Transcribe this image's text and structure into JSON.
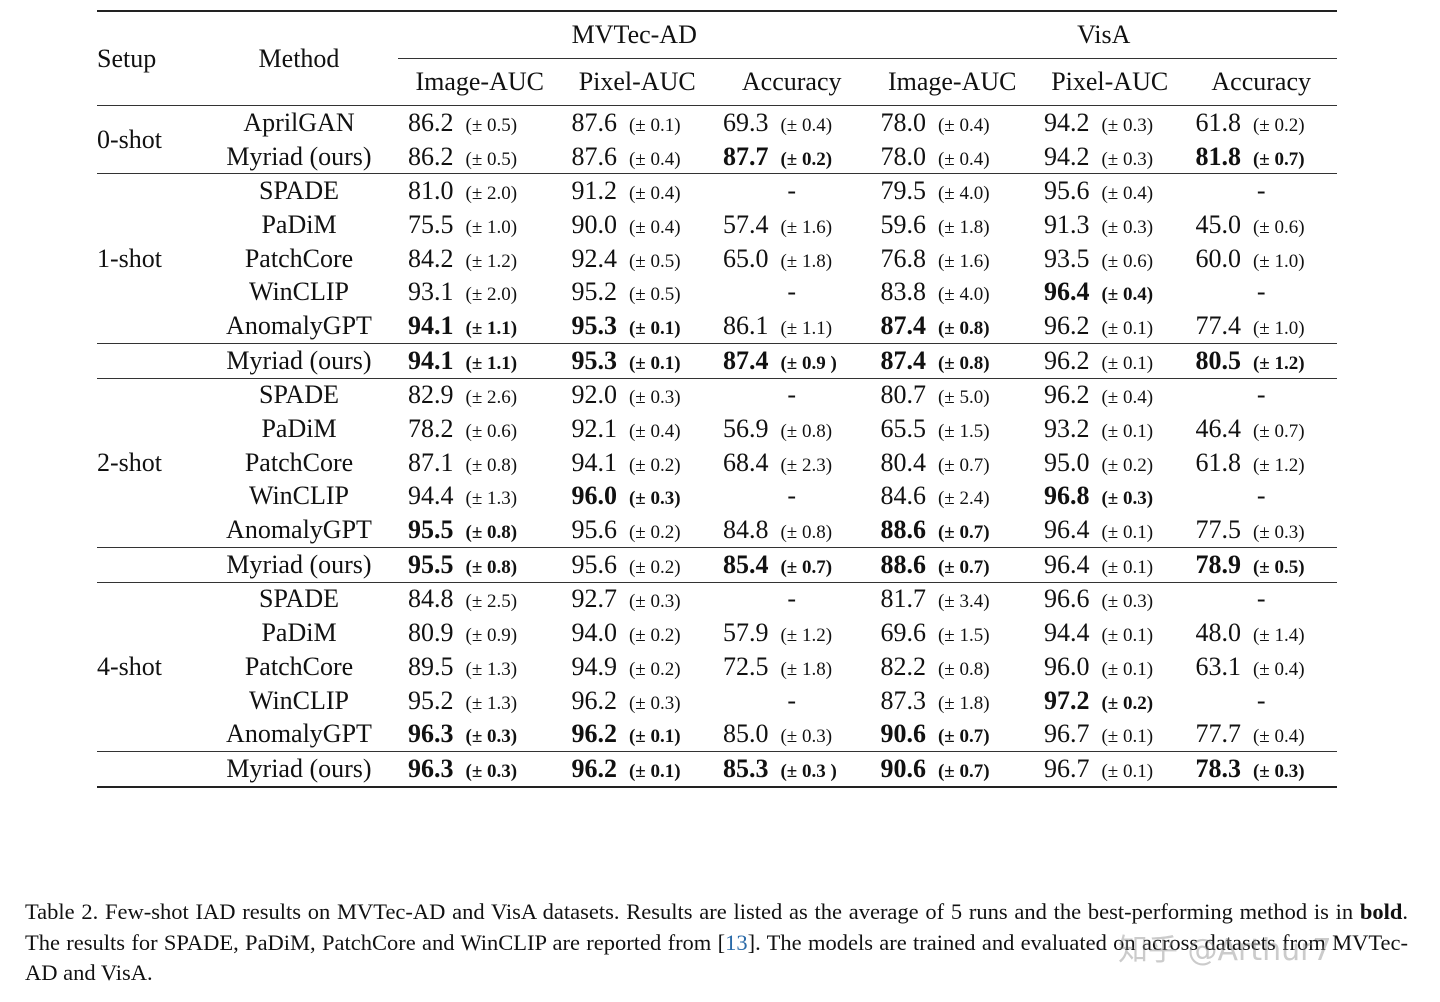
{
  "table": {
    "headers": {
      "setup": "Setup",
      "method": "Method",
      "datasets": [
        "MVTec-AD",
        "VisA"
      ],
      "metrics": [
        "Image-AUC",
        "Pixel-AUC",
        "Accuracy",
        "Image-AUC",
        "Pixel-AUC",
        "Accuracy"
      ]
    },
    "groups": [
      {
        "setup": "0-shot",
        "rows": [
          {
            "method": "AprilGAN",
            "bold": false,
            "cells": [
              {
                "v": "86.2",
                "s": "(± 0.5)"
              },
              {
                "v": "87.6",
                "s": "(± 0.1)"
              },
              {
                "v": "69.3",
                "s": "(± 0.4)"
              },
              {
                "v": "78.0",
                "s": "(± 0.4)"
              },
              {
                "v": "94.2",
                "s": "(± 0.3)"
              },
              {
                "v": "61.8",
                "s": "(± 0.2)"
              }
            ]
          },
          {
            "method": "Myriad (ours)",
            "bold": true,
            "cells": [
              {
                "v": "86.2",
                "s": "(± 0.5)"
              },
              {
                "v": "87.6",
                "s": "(± 0.4)"
              },
              {
                "v": "87.7",
                "s": "(± 0.2)",
                "b": true
              },
              {
                "v": "78.0",
                "s": "(± 0.4)"
              },
              {
                "v": "94.2",
                "s": "(± 0.3)"
              },
              {
                "v": "81.8",
                "s": "(± 0.7)",
                "b": true
              }
            ]
          }
        ]
      },
      {
        "setup": "1-shot",
        "rows": [
          {
            "method": "SPADE",
            "cells": [
              {
                "v": "81.0",
                "s": "(± 2.0)"
              },
              {
                "v": "91.2",
                "s": "(± 0.4)"
              },
              {
                "v": "-"
              },
              {
                "v": "79.5",
                "s": "(± 4.0)"
              },
              {
                "v": "95.6",
                "s": "(± 0.4)"
              },
              {
                "v": "-"
              }
            ]
          },
          {
            "method": "PaDiM",
            "cells": [
              {
                "v": "75.5",
                "s": "(± 1.0)"
              },
              {
                "v": "90.0",
                "s": "(± 0.4)"
              },
              {
                "v": "57.4",
                "s": "(± 1.6)"
              },
              {
                "v": "59.6",
                "s": "(± 1.8)"
              },
              {
                "v": "91.3",
                "s": "(± 0.3)"
              },
              {
                "v": "45.0",
                "s": "(± 0.6)"
              }
            ]
          },
          {
            "method": "PatchCore",
            "cells": [
              {
                "v": "84.2",
                "s": "(± 1.2)"
              },
              {
                "v": "92.4",
                "s": "(± 0.5)"
              },
              {
                "v": "65.0",
                "s": "(± 1.8)"
              },
              {
                "v": "76.8",
                "s": "(± 1.6)"
              },
              {
                "v": "93.5",
                "s": "(± 0.6)"
              },
              {
                "v": "60.0",
                "s": "(± 1.0)"
              }
            ]
          },
          {
            "method": "WinCLIP",
            "cells": [
              {
                "v": "93.1",
                "s": "(± 2.0)"
              },
              {
                "v": "95.2",
                "s": "(± 0.5)"
              },
              {
                "v": "-"
              },
              {
                "v": "83.8",
                "s": "(± 4.0)"
              },
              {
                "v": "96.4",
                "s": "(± 0.4)",
                "b": true
              },
              {
                "v": "-"
              }
            ]
          },
          {
            "method": "AnomalyGPT",
            "cells": [
              {
                "v": "94.1",
                "s": "(± 1.1)",
                "b": true
              },
              {
                "v": "95.3",
                "s": "(± 0.1)",
                "b": true
              },
              {
                "v": "86.1",
                "s": "(± 1.1)"
              },
              {
                "v": "87.4",
                "s": "(± 0.8)",
                "b": true
              },
              {
                "v": "96.2",
                "s": "(± 0.1)"
              },
              {
                "v": "77.4",
                "s": "(± 1.0)"
              }
            ]
          },
          {
            "method": "Myriad (ours)",
            "bold": true,
            "sep": true,
            "cells": [
              {
                "v": "94.1",
                "s": "(± 1.1)",
                "b": true
              },
              {
                "v": "95.3",
                "s": "(± 0.1)",
                "b": true
              },
              {
                "v": "87.4",
                "s": "(± 0.9 )",
                "b": true
              },
              {
                "v": "87.4",
                "s": "(± 0.8)",
                "b": true
              },
              {
                "v": "96.2",
                "s": "(± 0.1)"
              },
              {
                "v": "80.5",
                "s": "(± 1.2)",
                "b": true
              }
            ]
          }
        ]
      },
      {
        "setup": "2-shot",
        "rows": [
          {
            "method": "SPADE",
            "cells": [
              {
                "v": "82.9",
                "s": "(± 2.6)"
              },
              {
                "v": "92.0",
                "s": "(± 0.3)"
              },
              {
                "v": "-"
              },
              {
                "v": "80.7",
                "s": "(± 5.0)"
              },
              {
                "v": "96.2",
                "s": "(± 0.4)"
              },
              {
                "v": "-"
              }
            ]
          },
          {
            "method": "PaDiM",
            "cells": [
              {
                "v": "78.2",
                "s": "(± 0.6)"
              },
              {
                "v": "92.1",
                "s": "(± 0.4)"
              },
              {
                "v": "56.9",
                "s": "(± 0.8)"
              },
              {
                "v": "65.5",
                "s": "(± 1.5)"
              },
              {
                "v": "93.2",
                "s": "(± 0.1)"
              },
              {
                "v": "46.4",
                "s": "(± 0.7)"
              }
            ]
          },
          {
            "method": "PatchCore",
            "cells": [
              {
                "v": "87.1",
                "s": "(± 0.8)"
              },
              {
                "v": "94.1",
                "s": "(± 0.2)"
              },
              {
                "v": "68.4",
                "s": "(± 2.3)"
              },
              {
                "v": "80.4",
                "s": "(± 0.7)"
              },
              {
                "v": "95.0",
                "s": "(± 0.2)"
              },
              {
                "v": "61.8",
                "s": "(± 1.2)"
              }
            ]
          },
          {
            "method": "WinCLIP",
            "cells": [
              {
                "v": "94.4",
                "s": "(± 1.3)"
              },
              {
                "v": "96.0",
                "s": "(± 0.3)",
                "b": true
              },
              {
                "v": "-"
              },
              {
                "v": "84.6",
                "s": "(± 2.4)"
              },
              {
                "v": "96.8",
                "s": "(± 0.3)",
                "b": true
              },
              {
                "v": "-"
              }
            ]
          },
          {
            "method": "AnomalyGPT",
            "cells": [
              {
                "v": "95.5",
                "s": "(± 0.8)",
                "b": true
              },
              {
                "v": "95.6",
                "s": "(± 0.2)"
              },
              {
                "v": "84.8",
                "s": "(± 0.8)"
              },
              {
                "v": "88.6",
                "s": "(± 0.7)",
                "b": true
              },
              {
                "v": "96.4",
                "s": "(± 0.1)"
              },
              {
                "v": "77.5",
                "s": "(± 0.3)"
              }
            ]
          },
          {
            "method": "Myriad (ours)",
            "bold": true,
            "sep": true,
            "cells": [
              {
                "v": "95.5",
                "s": "(± 0.8)",
                "b": true
              },
              {
                "v": "95.6",
                "s": "(± 0.2)"
              },
              {
                "v": "85.4",
                "s": "(± 0.7)",
                "b": true
              },
              {
                "v": "88.6",
                "s": "(± 0.7)",
                "b": true
              },
              {
                "v": "96.4",
                "s": "(± 0.1)"
              },
              {
                "v": "78.9",
                "s": "(± 0.5)",
                "b": true
              }
            ]
          }
        ]
      },
      {
        "setup": "4-shot",
        "rows": [
          {
            "method": "SPADE",
            "cells": [
              {
                "v": "84.8",
                "s": "(± 2.5)"
              },
              {
                "v": "92.7",
                "s": "(± 0.3)"
              },
              {
                "v": "-"
              },
              {
                "v": "81.7",
                "s": "(± 3.4)"
              },
              {
                "v": "96.6",
                "s": "(± 0.3)"
              },
              {
                "v": "-"
              }
            ]
          },
          {
            "method": "PaDiM",
            "cells": [
              {
                "v": "80.9",
                "s": "(± 0.9)"
              },
              {
                "v": "94.0",
                "s": "(± 0.2)"
              },
              {
                "v": "57.9",
                "s": "(± 1.2)"
              },
              {
                "v": "69.6",
                "s": "(± 1.5)"
              },
              {
                "v": "94.4",
                "s": "(± 0.1)"
              },
              {
                "v": "48.0",
                "s": "(± 1.4)"
              }
            ]
          },
          {
            "method": "PatchCore",
            "cells": [
              {
                "v": "89.5",
                "s": "(± 1.3)"
              },
              {
                "v": "94.9",
                "s": "(± 0.2)"
              },
              {
                "v": "72.5",
                "s": "(± 1.8)"
              },
              {
                "v": "82.2",
                "s": "(± 0.8)"
              },
              {
                "v": "96.0",
                "s": "(± 0.1)"
              },
              {
                "v": "63.1",
                "s": "(± 0.4)"
              }
            ]
          },
          {
            "method": "WinCLIP",
            "cells": [
              {
                "v": "95.2",
                "s": "(± 1.3)"
              },
              {
                "v": "96.2",
                "s": "(± 0.3)"
              },
              {
                "v": "-"
              },
              {
                "v": "87.3",
                "s": "(± 1.8)"
              },
              {
                "v": "97.2",
                "s": "(± 0.2)",
                "b": true
              },
              {
                "v": "-"
              }
            ]
          },
          {
            "method": "AnomalyGPT",
            "cells": [
              {
                "v": "96.3",
                "s": "(± 0.3)",
                "b": true
              },
              {
                "v": "96.2",
                "s": "(± 0.1)",
                "b": true
              },
              {
                "v": "85.0",
                "s": "(± 0.3)"
              },
              {
                "v": "90.6",
                "s": "(± 0.7)",
                "b": true
              },
              {
                "v": "96.7",
                "s": "(± 0.1)"
              },
              {
                "v": "77.7",
                "s": "(± 0.4)"
              }
            ]
          },
          {
            "method": "Myriad (ours)",
            "bold": true,
            "sep": true,
            "cells": [
              {
                "v": "96.3",
                "s": "(± 0.3)",
                "b": true
              },
              {
                "v": "96.2",
                "s": "(± 0.1)",
                "b": true
              },
              {
                "v": "85.3",
                "s": "(± 0.3 )",
                "b": true
              },
              {
                "v": "90.6",
                "s": "(± 0.7)",
                "b": true
              },
              {
                "v": "96.7",
                "s": "(± 0.1)"
              },
              {
                "v": "78.3",
                "s": "(± 0.3)",
                "b": true
              }
            ]
          }
        ]
      }
    ]
  },
  "caption": {
    "p1": "Table 2.  Few-shot IAD results on MVTec-AD and VisA datasets.  Results are listed as the average of 5 runs and the best-performing method is in ",
    "bold": "bold",
    "p2": ". The results for SPADE, PaDiM, PatchCore and WinCLIP are reported from [",
    "ref": "13",
    "p3": "]. The models are trained and evaluated on across datasets from MVTec-AD and VisA."
  },
  "watermark": "知乎 @Arthur7"
}
